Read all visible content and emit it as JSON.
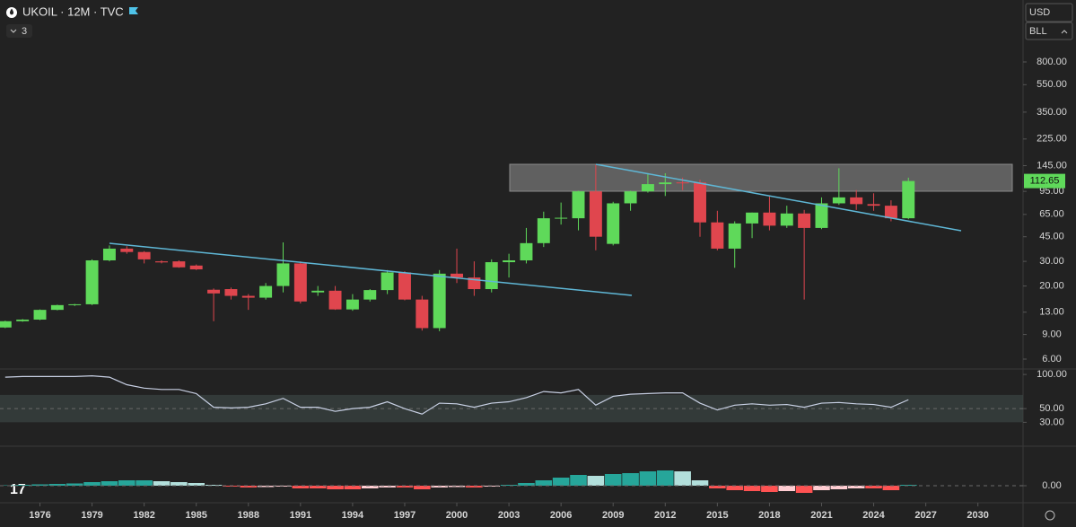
{
  "header": {
    "symbol": "UKOIL · 12M · TVC",
    "indicators": "3",
    "currency": "USD",
    "unit": "BLL"
  },
  "chart_data": [
    {
      "type": "candlestick",
      "log": true,
      "up_color": "#5fd95a",
      "down_color": "#e0464e",
      "x": [
        1974,
        1975,
        1976,
        1977,
        1978,
        1979,
        1980,
        1981,
        1982,
        1983,
        1984,
        1985,
        1986,
        1987,
        1988,
        1989,
        1990,
        1991,
        1992,
        1993,
        1994,
        1995,
        1996,
        1997,
        1998,
        1999,
        2000,
        2001,
        2002,
        2003,
        2004,
        2005,
        2006,
        2007,
        2008,
        2009,
        2010,
        2011,
        2012,
        2013,
        2014,
        2015,
        2016,
        2017,
        2018,
        2019,
        2020,
        2021,
        2022,
        2023,
        2024,
        2025,
        2026
      ],
      "open": [
        10.1,
        11.2,
        11.5,
        13.5,
        14.6,
        14.8,
        30.5,
        37,
        35,
        30,
        30,
        28,
        18.8,
        19,
        17,
        16.5,
        20,
        29,
        18,
        18.5,
        13.6,
        16,
        18.7,
        25,
        16,
        10,
        24.5,
        23,
        19,
        29.6,
        30.5,
        40.5,
        61,
        61,
        95,
        40,
        78,
        95,
        107,
        110,
        110,
        57,
        37,
        56,
        67,
        54,
        66,
        52,
        78,
        86,
        77,
        75,
        61
      ],
      "high": [
        11.3,
        11.6,
        13.6,
        14.7,
        14.9,
        31,
        39,
        38.5,
        35.5,
        30.5,
        30.5,
        28.5,
        19.2,
        19.5,
        17.5,
        21,
        41,
        30,
        20,
        20,
        17.5,
        19,
        26,
        25.5,
        17,
        26,
        37,
        30,
        31,
        34,
        52,
        68,
        79,
        96,
        147,
        80,
        96,
        127,
        128,
        119,
        115,
        69,
        58,
        67,
        87,
        75,
        70,
        86,
        139,
        97,
        92,
        82,
        119
      ],
      "low": [
        10.0,
        11.1,
        11.4,
        13.4,
        14.4,
        14.6,
        30,
        34,
        29,
        29,
        27,
        26,
        11.2,
        16,
        13.5,
        16,
        18,
        15,
        17,
        13.5,
        13.3,
        15.5,
        17.5,
        15.8,
        9.6,
        9.5,
        21,
        17,
        18,
        23,
        29,
        38,
        55,
        50,
        36,
        39,
        69,
        93,
        88,
        97,
        45,
        36,
        27,
        44,
        50,
        52,
        16,
        51,
        76,
        70,
        69,
        58,
        60
      ],
      "close": [
        11.2,
        11.5,
        13.5,
        14.6,
        14.8,
        30.5,
        37,
        35,
        31,
        29.5,
        27.2,
        26.3,
        17.7,
        17,
        16.5,
        20,
        29,
        15.5,
        18.5,
        13.6,
        16,
        18.7,
        25,
        16,
        10,
        24.5,
        23,
        19,
        29.6,
        30.5,
        40.5,
        61,
        61.5,
        95,
        45,
        78,
        95,
        107,
        110,
        109,
        57,
        37,
        56,
        67,
        54,
        66,
        52,
        78,
        86,
        77,
        75,
        61,
        112.65
      ],
      "xlim": [
        1973.7,
        2032.6
      ],
      "xticks": [
        1976,
        1979,
        1982,
        1985,
        1988,
        1991,
        1994,
        1997,
        2000,
        2003,
        2006,
        2009,
        2012,
        2015,
        2018,
        2021,
        2024,
        2027,
        2030
      ],
      "ylim": [
        5.1,
        2218
      ],
      "yticks": [
        {
          "value": 6,
          "label": "6.00"
        },
        {
          "value": 9,
          "label": "9.00"
        },
        {
          "value": 13,
          "label": "13.00"
        },
        {
          "value": 20,
          "label": "20.00"
        },
        {
          "value": 30,
          "label": "30.00"
        },
        {
          "value": 45,
          "label": "45.00"
        },
        {
          "value": 65,
          "label": "65.00"
        },
        {
          "value": 95,
          "label": "95.00"
        },
        {
          "value": 145,
          "label": "145.00"
        },
        {
          "value": 225,
          "label": "225.00"
        },
        {
          "value": 350,
          "label": "350.00"
        },
        {
          "value": 550,
          "label": "550.00"
        },
        {
          "value": 800,
          "label": "800.00"
        }
      ]
    },
    {
      "type": "line",
      "color": "#c8d0e4",
      "band": [
        30,
        70
      ],
      "ylim": [
        -5,
        108
      ],
      "values": [
        96,
        97,
        97,
        97,
        97,
        98,
        96,
        85,
        80,
        78,
        78,
        72,
        52,
        51,
        52,
        57,
        65,
        52,
        52,
        46,
        50,
        52,
        60,
        50,
        42,
        58,
        57,
        52,
        58,
        60,
        66,
        75,
        73,
        78,
        55,
        68,
        71,
        72,
        73,
        73,
        58,
        48,
        55,
        57,
        55,
        56,
        52,
        58,
        59,
        57,
        56,
        52,
        63
      ],
      "yticks": [
        {
          "value": 100,
          "label": "100.00"
        },
        {
          "value": 50,
          "label": "50.00"
        },
        {
          "value": 30,
          "label": "30.00"
        }
      ]
    },
    {
      "type": "bar",
      "ylim": [
        -19,
        44
      ],
      "values": [
        0.5,
        1,
        1.5,
        2,
        2.5,
        4,
        5,
        6,
        6,
        5,
        4,
        3,
        1,
        -1,
        -2,
        -1.5,
        -1,
        -3,
        -3,
        -4,
        -4,
        -3,
        -2,
        -2,
        -4,
        -2,
        -1.5,
        -2,
        -1,
        1,
        3,
        6,
        9,
        12,
        11,
        13,
        14,
        16,
        17,
        16,
        6,
        -3,
        -5,
        -6,
        -7,
        -6,
        -8,
        -5,
        -4,
        -3,
        -3,
        -5,
        1
      ],
      "yticks": [
        {
          "value": 0,
          "label": "0.00"
        }
      ]
    }
  ]
}
